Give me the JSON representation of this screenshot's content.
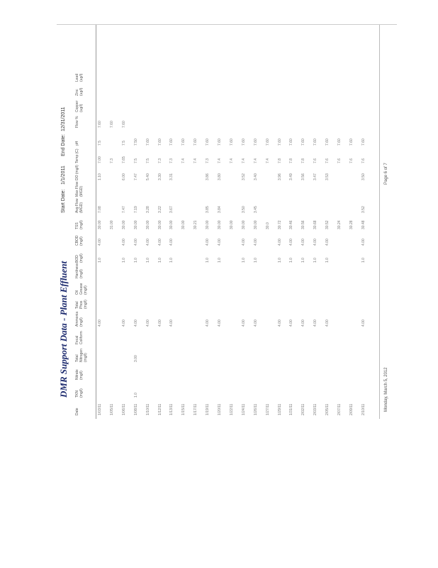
{
  "title": "DMR Support Data - Plant Effluent",
  "start_date_label": "Start Date:",
  "start_date": "1/1/2011",
  "end_date_label": "End Date:",
  "end_date": "12/31/2011",
  "columns": [
    "Date",
    "TKN (mg/l)",
    "Nitrate (mg/l)",
    "Total Nitrogen (mg/l)",
    "Fecal Coliform",
    "Ammonia (mg/l)",
    "Total Phos (mg/l)",
    "Oil Grease (mg/l)",
    "Hardness (mg/l)",
    "BOD (mg/l)",
    "CBOD (mg/l)",
    "TSS (mg/l)",
    "Avg Flow (MGD)",
    "Max Flow (MGD)",
    "DO (mg/l)",
    "Temp (C)",
    "pH",
    "Flow %",
    "Copper (ug/l)",
    "Zinc (ug/l)",
    "Lead (ug/l)"
  ],
  "rows": [
    [
      "1/03/11",
      "",
      "",
      "",
      "",
      "4.00",
      "",
      "",
      "",
      "1.0",
      "4.00",
      "30.00",
      "7.08",
      "",
      "1.10",
      "7.00",
      "7.5",
      "7.60",
      "",
      "",
      ""
    ],
    [
      "1/05/11",
      "",
      "",
      "",
      "",
      "",
      "",
      "",
      "",
      "",
      "",
      "31.00",
      "",
      "",
      "",
      "7.3",
      "",
      "7.60",
      "",
      "",
      ""
    ],
    [
      "1/06/11",
      "",
      "",
      "",
      "",
      "4.00",
      "",
      "",
      "",
      "1.0",
      "4.00",
      "30.00",
      "7.47",
      "",
      "6.00",
      "7.65",
      "7.5",
      "7.60",
      "",
      "",
      ""
    ],
    [
      "1/08/11",
      "1.0",
      "",
      "3.00",
      "",
      "4.00",
      "",
      "",
      "",
      "1.0",
      "4.00",
      "30.00",
      "7.19",
      "",
      "7.47",
      "7.5",
      "7.50",
      "",
      "",
      "",
      ""
    ],
    [
      "1/10/11",
      "",
      "",
      "",
      "",
      "4.00",
      "",
      "",
      "",
      "1.0",
      "4.00",
      "30.00",
      "3.28",
      "",
      "5.40",
      "7.5",
      "7.60",
      "",
      "",
      "",
      ""
    ],
    [
      "1/12/11",
      "",
      "",
      "",
      "",
      "4.00",
      "",
      "",
      "",
      "1.0",
      "4.00",
      "30.00",
      "3.22",
      "",
      "3.30",
      "7.3",
      "7.60",
      "",
      "",
      "",
      ""
    ],
    [
      "1/13/11",
      "",
      "",
      "",
      "",
      "4.00",
      "",
      "",
      "",
      "1.0",
      "4.00",
      "30.00",
      "3.67",
      "",
      "3.31",
      "7.3",
      "7.60",
      "",
      "",
      "",
      ""
    ],
    [
      "1/15/11",
      "",
      "",
      "",
      "",
      "",
      "",
      "",
      "",
      "",
      "",
      "30.00",
      "",
      "",
      "",
      "7.4",
      "7.60",
      "",
      "",
      "",
      ""
    ],
    [
      "1/17/11",
      "",
      "",
      "",
      "",
      "",
      "",
      "",
      "",
      "",
      "",
      "30.21",
      "",
      "",
      "",
      "7.4",
      "7.60",
      "",
      "",
      "",
      ""
    ],
    [
      "1/19/11",
      "",
      "",
      "",
      "",
      "4.00",
      "",
      "",
      "",
      "1.0",
      "4.00",
      "30.00",
      "3.85",
      "",
      "3.86",
      "7.3",
      "7.60",
      "",
      "",
      "",
      ""
    ],
    [
      "1/20/11",
      "",
      "",
      "",
      "",
      "4.00",
      "",
      "",
      "",
      "1.0",
      "4.00",
      "30.00",
      "3.84",
      "",
      "3.80",
      "7.4",
      "7.60",
      "",
      "",
      "",
      ""
    ],
    [
      "1/22/11",
      "",
      "",
      "",
      "",
      "",
      "",
      "",
      "",
      "",
      "",
      "30.00",
      "",
      "",
      "",
      "7.4",
      "7.60",
      "",
      "",
      "",
      ""
    ],
    [
      "1/24/11",
      "",
      "",
      "",
      "",
      "4.00",
      "",
      "",
      "",
      "1.0",
      "4.00",
      "30.00",
      "3.50",
      "",
      "3.52",
      "7.4",
      "7.60",
      "",
      "",
      "",
      ""
    ],
    [
      "1/26/11",
      "",
      "",
      "",
      "",
      "4.00",
      "",
      "",
      "",
      "1.0",
      "4.00",
      "30.00",
      "3.45",
      "",
      "3.40",
      "7.4",
      "7.60",
      "",
      "",
      "",
      ""
    ],
    [
      "1/27/11",
      "",
      "",
      "",
      "",
      "",
      "",
      "",
      "",
      "",
      "",
      "30.0",
      "",
      "",
      "",
      "7.4",
      "7.60",
      "",
      "",
      "",
      ""
    ],
    [
      "1/29/11",
      "",
      "",
      "",
      "",
      "4.00",
      "",
      "",
      "",
      "1.0",
      "4.00",
      "30.72",
      "",
      "",
      "3.96",
      "7.8",
      "7.60",
      "",
      "",
      "",
      ""
    ],
    [
      "1/31/11",
      "",
      "",
      "",
      "",
      "4.00",
      "",
      "",
      "",
      "1.0",
      "4.00",
      "30.46",
      "",
      "",
      "3.49",
      "7.8",
      "7.60",
      "",
      "",
      "",
      ""
    ],
    [
      "2/02/11",
      "",
      "",
      "",
      "",
      "4.00",
      "",
      "",
      "",
      "1.0",
      "4.00",
      "30.56",
      "",
      "",
      "3.56",
      "7.8",
      "7.60",
      "",
      "",
      "",
      ""
    ],
    [
      "2/03/11",
      "",
      "",
      "",
      "",
      "4.00",
      "",
      "",
      "",
      "1.0",
      "4.00",
      "30.68",
      "",
      "",
      "3.47",
      "7.6",
      "7.60",
      "",
      "",
      "",
      ""
    ],
    [
      "2/05/11",
      "",
      "",
      "",
      "",
      "4.00",
      "",
      "",
      "",
      "1.0",
      "4.00",
      "30.52",
      "",
      "",
      "3.53",
      "7.6",
      "7.60",
      "",
      "",
      "",
      ""
    ],
    [
      "2/07/11",
      "",
      "",
      "",
      "",
      "",
      "",
      "",
      "",
      "",
      "",
      "30.24",
      "",
      "",
      "",
      "7.6",
      "7.60",
      "",
      "",
      "",
      ""
    ],
    [
      "2/09/11",
      "",
      "",
      "",
      "",
      "",
      "",
      "",
      "",
      "",
      "",
      "30.28",
      "",
      "",
      "",
      "7.6",
      "7.60",
      "",
      "",
      "",
      ""
    ],
    [
      "2/10/11",
      "",
      "",
      "",
      "",
      "4.00",
      "",
      "",
      "",
      "1.0",
      "4.00",
      "30.48",
      "3.52",
      "",
      "3.50",
      "7.6",
      "7.60",
      "",
      "",
      "",
      ""
    ]
  ],
  "footer": {
    "date": "Monday, March 5, 2012",
    "page": "Page 6 of 7"
  }
}
